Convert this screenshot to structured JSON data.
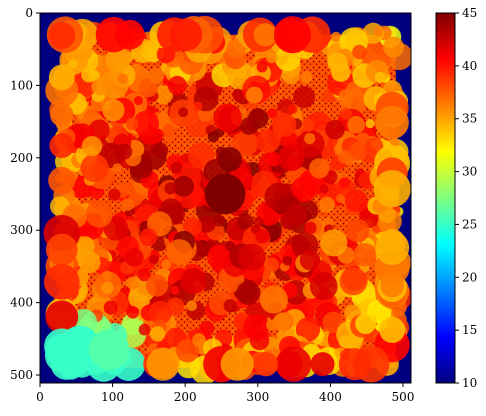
{
  "chart_data": {
    "type": "heatmap",
    "title": "",
    "xlabel": "",
    "ylabel": "",
    "xlim": [
      0,
      511
    ],
    "ylim": [
      511,
      0
    ],
    "xticks": [
      0,
      100,
      200,
      300,
      400,
      500
    ],
    "yticks": [
      0,
      100,
      200,
      300,
      400,
      500
    ],
    "grid": false,
    "colormap": "jet",
    "background_value": 10,
    "colorbar": {
      "range": [
        10,
        45
      ],
      "ticks": [
        10,
        15,
        20,
        25,
        30,
        35,
        40,
        45
      ],
      "placement": "right"
    },
    "annotated_regions": [
      {
        "description": "dark red core",
        "x": 255,
        "y": 250,
        "approx_value": 45
      },
      {
        "description": "cyan cluster",
        "x": 55,
        "y": 460,
        "approx_value": 25
      },
      {
        "description": "cyan cluster",
        "x": 95,
        "y": 465,
        "approx_value": 26
      }
    ],
    "colors": {
      "background": "#00007f",
      "high": "#7f0000",
      "mid": "#ff3c00",
      "low": "#00ffcc"
    }
  }
}
